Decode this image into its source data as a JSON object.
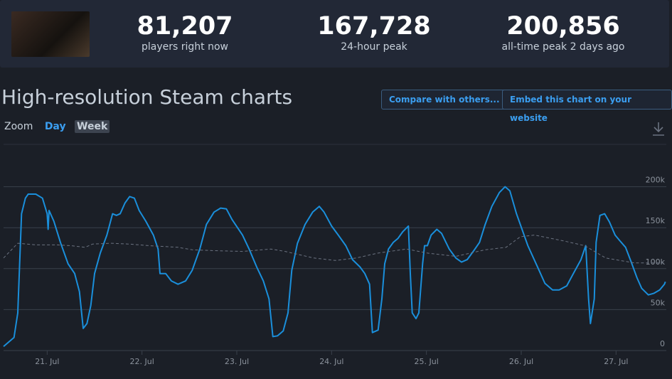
{
  "header": {
    "stats": [
      {
        "value": "81,207",
        "label": "players right now"
      },
      {
        "value": "167,728",
        "label": "24-hour peak"
      },
      {
        "value": "200,856",
        "label": "all-time peak 2 days ago"
      }
    ]
  },
  "title": "High-resolution Steam charts",
  "buttons": [
    "Compare with others...",
    "Embed this chart on your website"
  ],
  "zoom": {
    "label": "Zoom",
    "options": [
      "Day",
      "Week"
    ]
  },
  "chart_data": {
    "type": "line",
    "xlim": [
      20.54,
      27.53
    ],
    "xticks": [
      {
        "value": 21,
        "label": "21. Jul"
      },
      {
        "value": 22,
        "label": "22. Jul"
      },
      {
        "value": 23,
        "label": "23. Jul"
      },
      {
        "value": 24,
        "label": "24. Jul"
      },
      {
        "value": 25,
        "label": "25. Jul"
      },
      {
        "value": 26,
        "label": "26. Jul"
      },
      {
        "value": 27,
        "label": "27. Jul"
      }
    ],
    "ylim": [
      0,
      250000
    ],
    "yticks": [
      0,
      {
        "value": 50000,
        "label": "50k"
      },
      {
        "value": 100000,
        "label": "100k"
      },
      {
        "value": 150000,
        "label": "150k"
      },
      {
        "value": 200000,
        "label": "200k"
      }
    ],
    "grid": true,
    "series": [
      {
        "color": "#1a8fdb",
        "dashed": false,
        "x": [
          20.54,
          20.65,
          20.69,
          20.73,
          20.77,
          20.8,
          20.88,
          20.95,
          21.0,
          21.01,
          21.02,
          21.07,
          21.14,
          21.22,
          21.29,
          21.34,
          21.38,
          21.42,
          21.46,
          21.5,
          21.56,
          21.63,
          21.69,
          21.73,
          21.77,
          21.82,
          21.87,
          21.92,
          21.97,
          22.04,
          22.12,
          22.17,
          22.19,
          22.25,
          22.31,
          22.38,
          22.46,
          22.53,
          22.61,
          22.68,
          22.76,
          22.83,
          22.89,
          22.95,
          23.06,
          23.13,
          23.21,
          23.28,
          23.34,
          23.38,
          23.43,
          23.49,
          23.54,
          23.58,
          23.64,
          23.72,
          23.8,
          23.87,
          23.92,
          24.0,
          24.07,
          24.15,
          24.22,
          24.3,
          24.35,
          24.4,
          24.43,
          24.49,
          24.53,
          24.56,
          24.6,
          24.65,
          24.7,
          24.75,
          24.81,
          24.83,
          24.85,
          24.89,
          24.92,
          24.96,
          24.98,
          25.01,
          25.05,
          25.11,
          25.16,
          25.24,
          25.31,
          25.37,
          25.43,
          25.5,
          25.56,
          25.62,
          25.69,
          25.77,
          25.83,
          25.88,
          25.95,
          26.07,
          26.18,
          26.25,
          26.33,
          26.4,
          26.48,
          26.55,
          26.63,
          26.68,
          26.71,
          26.73,
          26.77,
          26.79,
          26.83,
          26.88,
          26.93,
          26.99,
          27.04,
          27.1,
          27.16,
          27.22,
          27.27,
          27.34,
          27.4,
          27.46,
          27.51,
          27.52
        ],
        "values": [
          5000,
          16000,
          46000,
          167000,
          186000,
          191000,
          191000,
          186000,
          167000,
          148000,
          171000,
          158000,
          132000,
          106000,
          94000,
          72000,
          27000,
          33000,
          55000,
          94000,
          119000,
          141000,
          167000,
          165000,
          167000,
          180000,
          188000,
          186000,
          171000,
          158000,
          141000,
          124000,
          94000,
          94000,
          85000,
          81000,
          85000,
          98000,
          124000,
          154000,
          169000,
          174000,
          173000,
          160000,
          141000,
          124000,
          102000,
          85000,
          63000,
          17000,
          18000,
          24000,
          46000,
          98000,
          131000,
          154000,
          169000,
          176000,
          169000,
          152000,
          141000,
          128000,
          111000,
          102000,
          94000,
          81000,
          22000,
          25000,
          63000,
          106000,
          124000,
          132000,
          137000,
          145000,
          152000,
          94000,
          46000,
          39000,
          46000,
          106000,
          128000,
          128000,
          141000,
          148000,
          143000,
          124000,
          113000,
          108000,
          111000,
          122000,
          132000,
          154000,
          176000,
          193000,
          200000,
          195000,
          167000,
          128000,
          100000,
          82000,
          74000,
          74000,
          79000,
          94000,
          111000,
          128000,
          63000,
          33000,
          63000,
          132000,
          165000,
          167000,
          157000,
          141000,
          134000,
          126000,
          108000,
          89000,
          76000,
          68000,
          70000,
          74000,
          81000,
          84000
        ]
      },
      {
        "color": "#6b7280",
        "dashed": true,
        "x": [
          20.54,
          20.69,
          20.88,
          21.1,
          21.25,
          21.4,
          21.48,
          21.67,
          21.86,
          22.08,
          22.38,
          22.53,
          22.76,
          23.06,
          23.36,
          23.51,
          23.81,
          24.04,
          24.26,
          24.49,
          24.79,
          25.01,
          25.31,
          25.62,
          25.84,
          25.99,
          26.14,
          26.44,
          26.67,
          26.89,
          27.19,
          27.52
        ],
        "values": [
          113000,
          131000,
          129000,
          129000,
          128000,
          126000,
          130000,
          131000,
          130000,
          128000,
          126000,
          123000,
          122000,
          121000,
          124000,
          121000,
          113000,
          110000,
          113000,
          119000,
          124000,
          119000,
          115000,
          123000,
          126000,
          139000,
          141000,
          134000,
          128000,
          113000,
          107000,
          107000
        ]
      }
    ]
  }
}
